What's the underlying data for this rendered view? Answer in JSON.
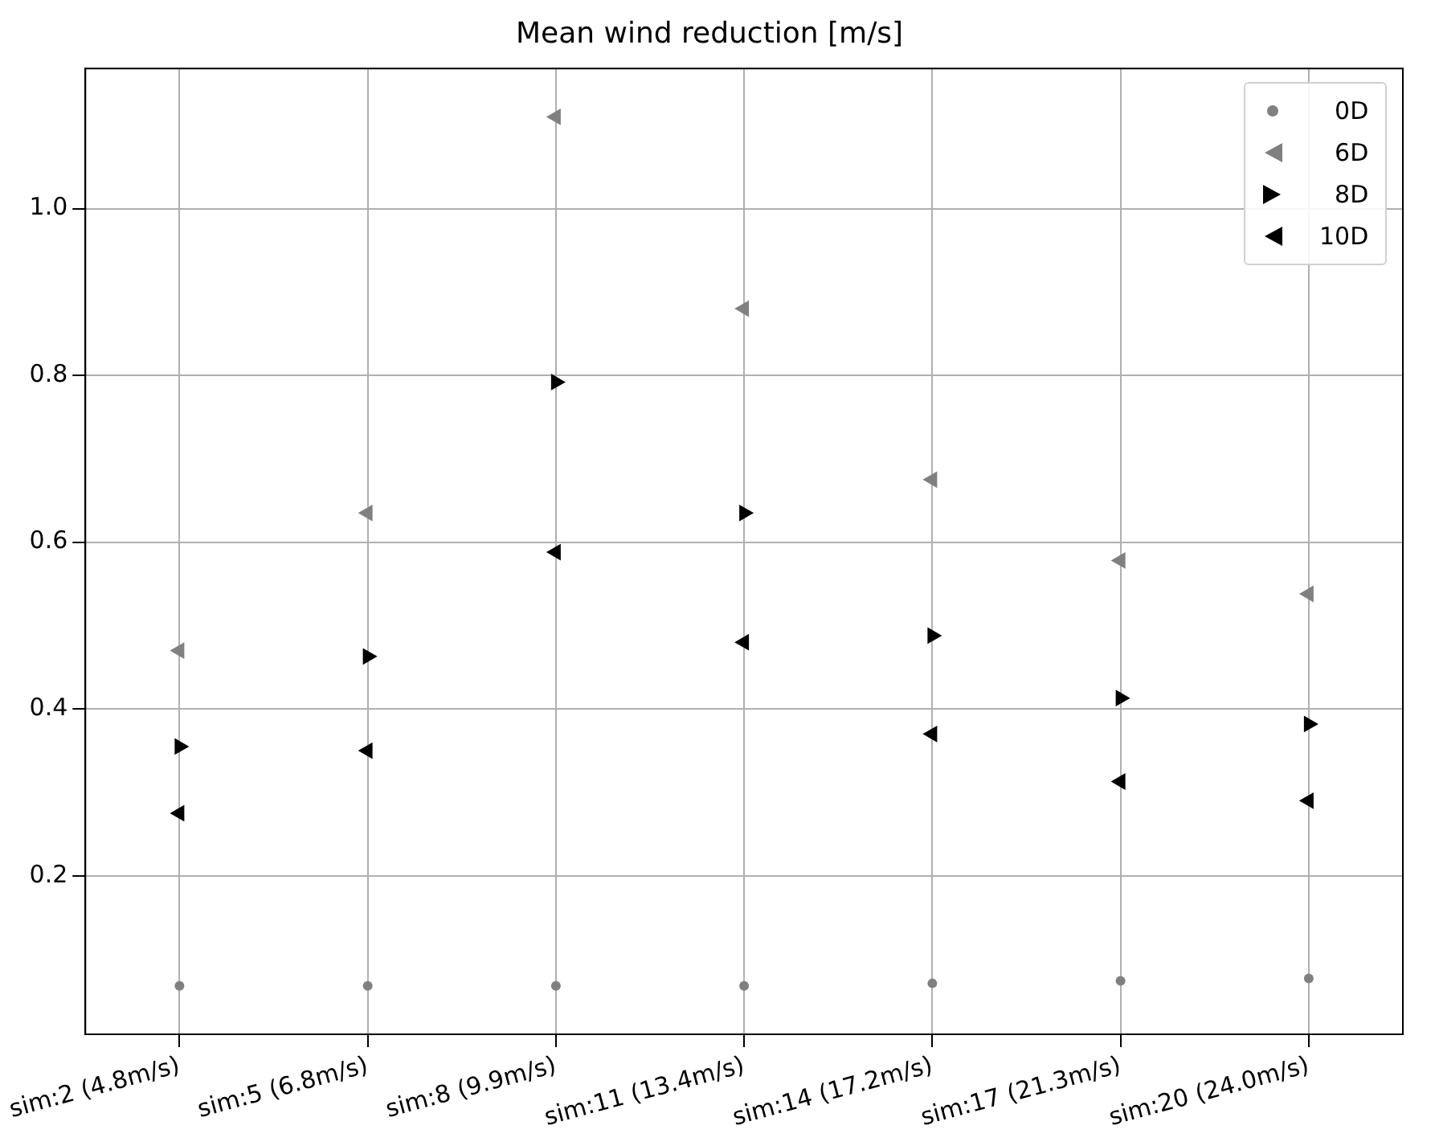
{
  "chart_data": {
    "type": "scatter",
    "title": "Mean wind reduction [m/s]",
    "categories": [
      "sim:2 (4.8m/s)",
      "sim:5 (6.8m/s)",
      "sim:8 (9.9m/s)",
      "sim:11 (13.4m/s)",
      "sim:14 (17.2m/s)",
      "sim:17 (21.3m/s)",
      "sim:20 (24.0m/s)"
    ],
    "series": [
      {
        "name": "0D",
        "color": "#808080",
        "marker": "circle",
        "values": [
          0.068,
          0.068,
          0.068,
          0.068,
          0.071,
          0.074,
          0.077
        ]
      },
      {
        "name": "6D",
        "color": "#808080",
        "marker": "triangle",
        "values": [
          0.47,
          0.635,
          1.11,
          0.88,
          0.675,
          0.578,
          0.538
        ]
      },
      {
        "name": "8D",
        "color": "#000000",
        "marker": "triangle",
        "values": [
          0.355,
          0.463,
          0.792,
          0.635,
          0.488,
          0.413,
          0.382
        ]
      },
      {
        "name": "10D",
        "color": "#000000",
        "marker": "triangle",
        "values": [
          0.275,
          0.35,
          0.588,
          0.48,
          0.37,
          0.313,
          0.29
        ]
      }
    ],
    "ylim": [
      0.01,
      1.168
    ],
    "yticks": [
      0.2,
      0.4,
      0.6,
      0.8,
      {
        "value": 1,
        "label": "1.0"
      }
    ],
    "grid": true,
    "legend": "top right"
  }
}
